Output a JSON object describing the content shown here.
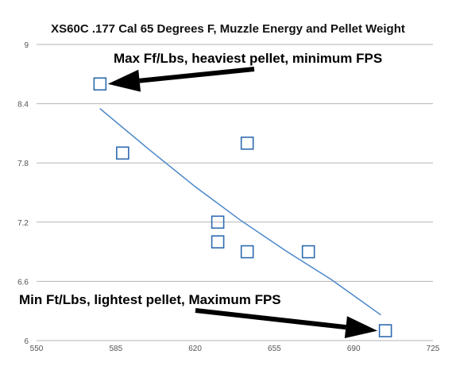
{
  "chart_data": {
    "type": "scatter",
    "title": "XS60C .177 Cal 65 Degrees F, Muzzle Energy and Pellet Weight",
    "xlabel": "",
    "ylabel": "",
    "xlim": [
      550,
      725
    ],
    "ylim": [
      6,
      9
    ],
    "x_ticks": [
      "550",
      "585",
      "620",
      "655",
      "690",
      "725"
    ],
    "y_ticks": [
      "6",
      "6.6",
      "7.2",
      "7.8",
      "8.4",
      "9"
    ],
    "grid": "horizontal",
    "series": [
      {
        "marker": "hollow-square",
        "color": "#2f6bb0",
        "points": [
          {
            "x": 578,
            "y": 8.6
          },
          {
            "x": 588,
            "y": 7.9
          },
          {
            "x": 630,
            "y": 7.2
          },
          {
            "x": 630,
            "y": 7.0
          },
          {
            "x": 643,
            "y": 8.0
          },
          {
            "x": 643,
            "y": 6.9
          },
          {
            "x": 670,
            "y": 6.9
          },
          {
            "x": 704,
            "y": 6.1
          }
        ]
      }
    ],
    "trendline": {
      "color": "#4a86c8",
      "points": [
        {
          "x": 578,
          "y": 8.35
        },
        {
          "x": 600,
          "y": 7.93
        },
        {
          "x": 620,
          "y": 7.56
        },
        {
          "x": 640,
          "y": 7.22
        },
        {
          "x": 660,
          "y": 6.91
        },
        {
          "x": 680,
          "y": 6.62
        },
        {
          "x": 702,
          "y": 6.26
        }
      ]
    },
    "annotations": [
      {
        "id": "top",
        "text": "Max Ff/Lbs, heaviest pellet, minimum FPS",
        "target": {
          "x": 578,
          "y": 8.6
        }
      },
      {
        "id": "bottom",
        "text": "Min Ft/Lbs, lightest pellet, Maximum FPS",
        "target": {
          "x": 704,
          "y": 6.1
        }
      }
    ]
  }
}
